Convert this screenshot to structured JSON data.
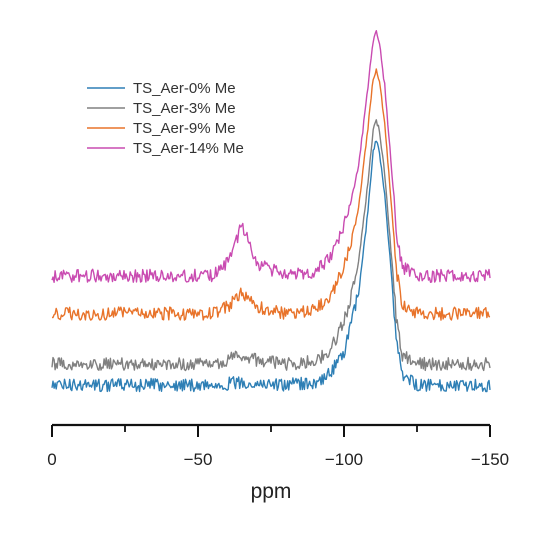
{
  "chart_data": {
    "type": "line",
    "title": "",
    "xlabel": "ppm",
    "ylabel": "",
    "x_reversed": true,
    "xlim": [
      0,
      -150
    ],
    "x_ticks": [
      0,
      -50,
      -100,
      -150
    ],
    "x_tick_labels": [
      "0",
      "−50",
      "−100",
      "−150"
    ],
    "x_minor_ticks": [
      -25,
      -75,
      -125
    ],
    "grid": false,
    "y_axis_visible": false,
    "legend_position": "top-left",
    "peaks": {
      "Q4": {
        "center_ppm": -111,
        "shoulder_ppm": -102
      },
      "T": {
        "center_ppm": -65
      }
    },
    "series": [
      {
        "name": "TS_Aer-0% Me",
        "color": "#2e7fb5",
        "baseline": 0,
        "points": [
          [
            0,
            0
          ],
          [
            -20,
            0
          ],
          [
            -40,
            0
          ],
          [
            -55,
            0
          ],
          [
            -60,
            0.3
          ],
          [
            -65,
            0.6
          ],
          [
            -70,
            0.3
          ],
          [
            -80,
            0
          ],
          [
            -90,
            0.5
          ],
          [
            -95,
            2.5
          ],
          [
            -100,
            8
          ],
          [
            -102,
            13
          ],
          [
            -105,
            22
          ],
          [
            -108,
            40
          ],
          [
            -110,
            56
          ],
          [
            -111,
            58
          ],
          [
            -112,
            56
          ],
          [
            -114,
            45
          ],
          [
            -116,
            28
          ],
          [
            -118,
            10
          ],
          [
            -120,
            2
          ],
          [
            -125,
            0
          ],
          [
            -150,
            0
          ]
        ]
      },
      {
        "name": "TS_Aer-3% Me",
        "color": "#808080",
        "baseline": 5,
        "points": [
          [
            0,
            0
          ],
          [
            -20,
            0
          ],
          [
            -40,
            0
          ],
          [
            -55,
            0
          ],
          [
            -60,
            1
          ],
          [
            -65,
            2.2
          ],
          [
            -70,
            1
          ],
          [
            -80,
            0
          ],
          [
            -90,
            0.6
          ],
          [
            -95,
            3
          ],
          [
            -100,
            10
          ],
          [
            -102,
            15
          ],
          [
            -105,
            24
          ],
          [
            -108,
            42
          ],
          [
            -110,
            56
          ],
          [
            -111,
            58
          ],
          [
            -112,
            56
          ],
          [
            -114,
            45
          ],
          [
            -116,
            28
          ],
          [
            -118,
            10
          ],
          [
            -120,
            2
          ],
          [
            -125,
            0
          ],
          [
            -150,
            0
          ]
        ]
      },
      {
        "name": "TS_Aer-9% Me",
        "color": "#e8732a",
        "baseline": 17,
        "points": [
          [
            0,
            0
          ],
          [
            -20,
            0
          ],
          [
            -40,
            0
          ],
          [
            -55,
            0
          ],
          [
            -60,
            1.5
          ],
          [
            -65,
            5
          ],
          [
            -70,
            1.5
          ],
          [
            -80,
            0
          ],
          [
            -90,
            0.8
          ],
          [
            -95,
            3.5
          ],
          [
            -100,
            11
          ],
          [
            -102,
            16
          ],
          [
            -105,
            25
          ],
          [
            -108,
            43
          ],
          [
            -110,
            56
          ],
          [
            -111,
            58
          ],
          [
            -112,
            56
          ],
          [
            -114,
            45
          ],
          [
            -116,
            28
          ],
          [
            -118,
            10
          ],
          [
            -120,
            2
          ],
          [
            -125,
            0
          ],
          [
            -150,
            0
          ]
        ]
      },
      {
        "name": "TS_Aer-14% Me",
        "color": "#c94bb1",
        "baseline": 26,
        "points": [
          [
            0,
            0
          ],
          [
            -20,
            0
          ],
          [
            -40,
            0
          ],
          [
            -55,
            0
          ],
          [
            -60,
            3
          ],
          [
            -65,
            12
          ],
          [
            -67,
            10
          ],
          [
            -70,
            3
          ],
          [
            -80,
            0
          ],
          [
            -90,
            1
          ],
          [
            -95,
            4
          ],
          [
            -100,
            12
          ],
          [
            -102,
            17
          ],
          [
            -105,
            26
          ],
          [
            -108,
            44
          ],
          [
            -110,
            56
          ],
          [
            -111,
            58
          ],
          [
            -112,
            56
          ],
          [
            -114,
            45
          ],
          [
            -116,
            28
          ],
          [
            -118,
            10
          ],
          [
            -120,
            2
          ],
          [
            -125,
            0
          ],
          [
            -150,
            0
          ]
        ]
      }
    ]
  }
}
